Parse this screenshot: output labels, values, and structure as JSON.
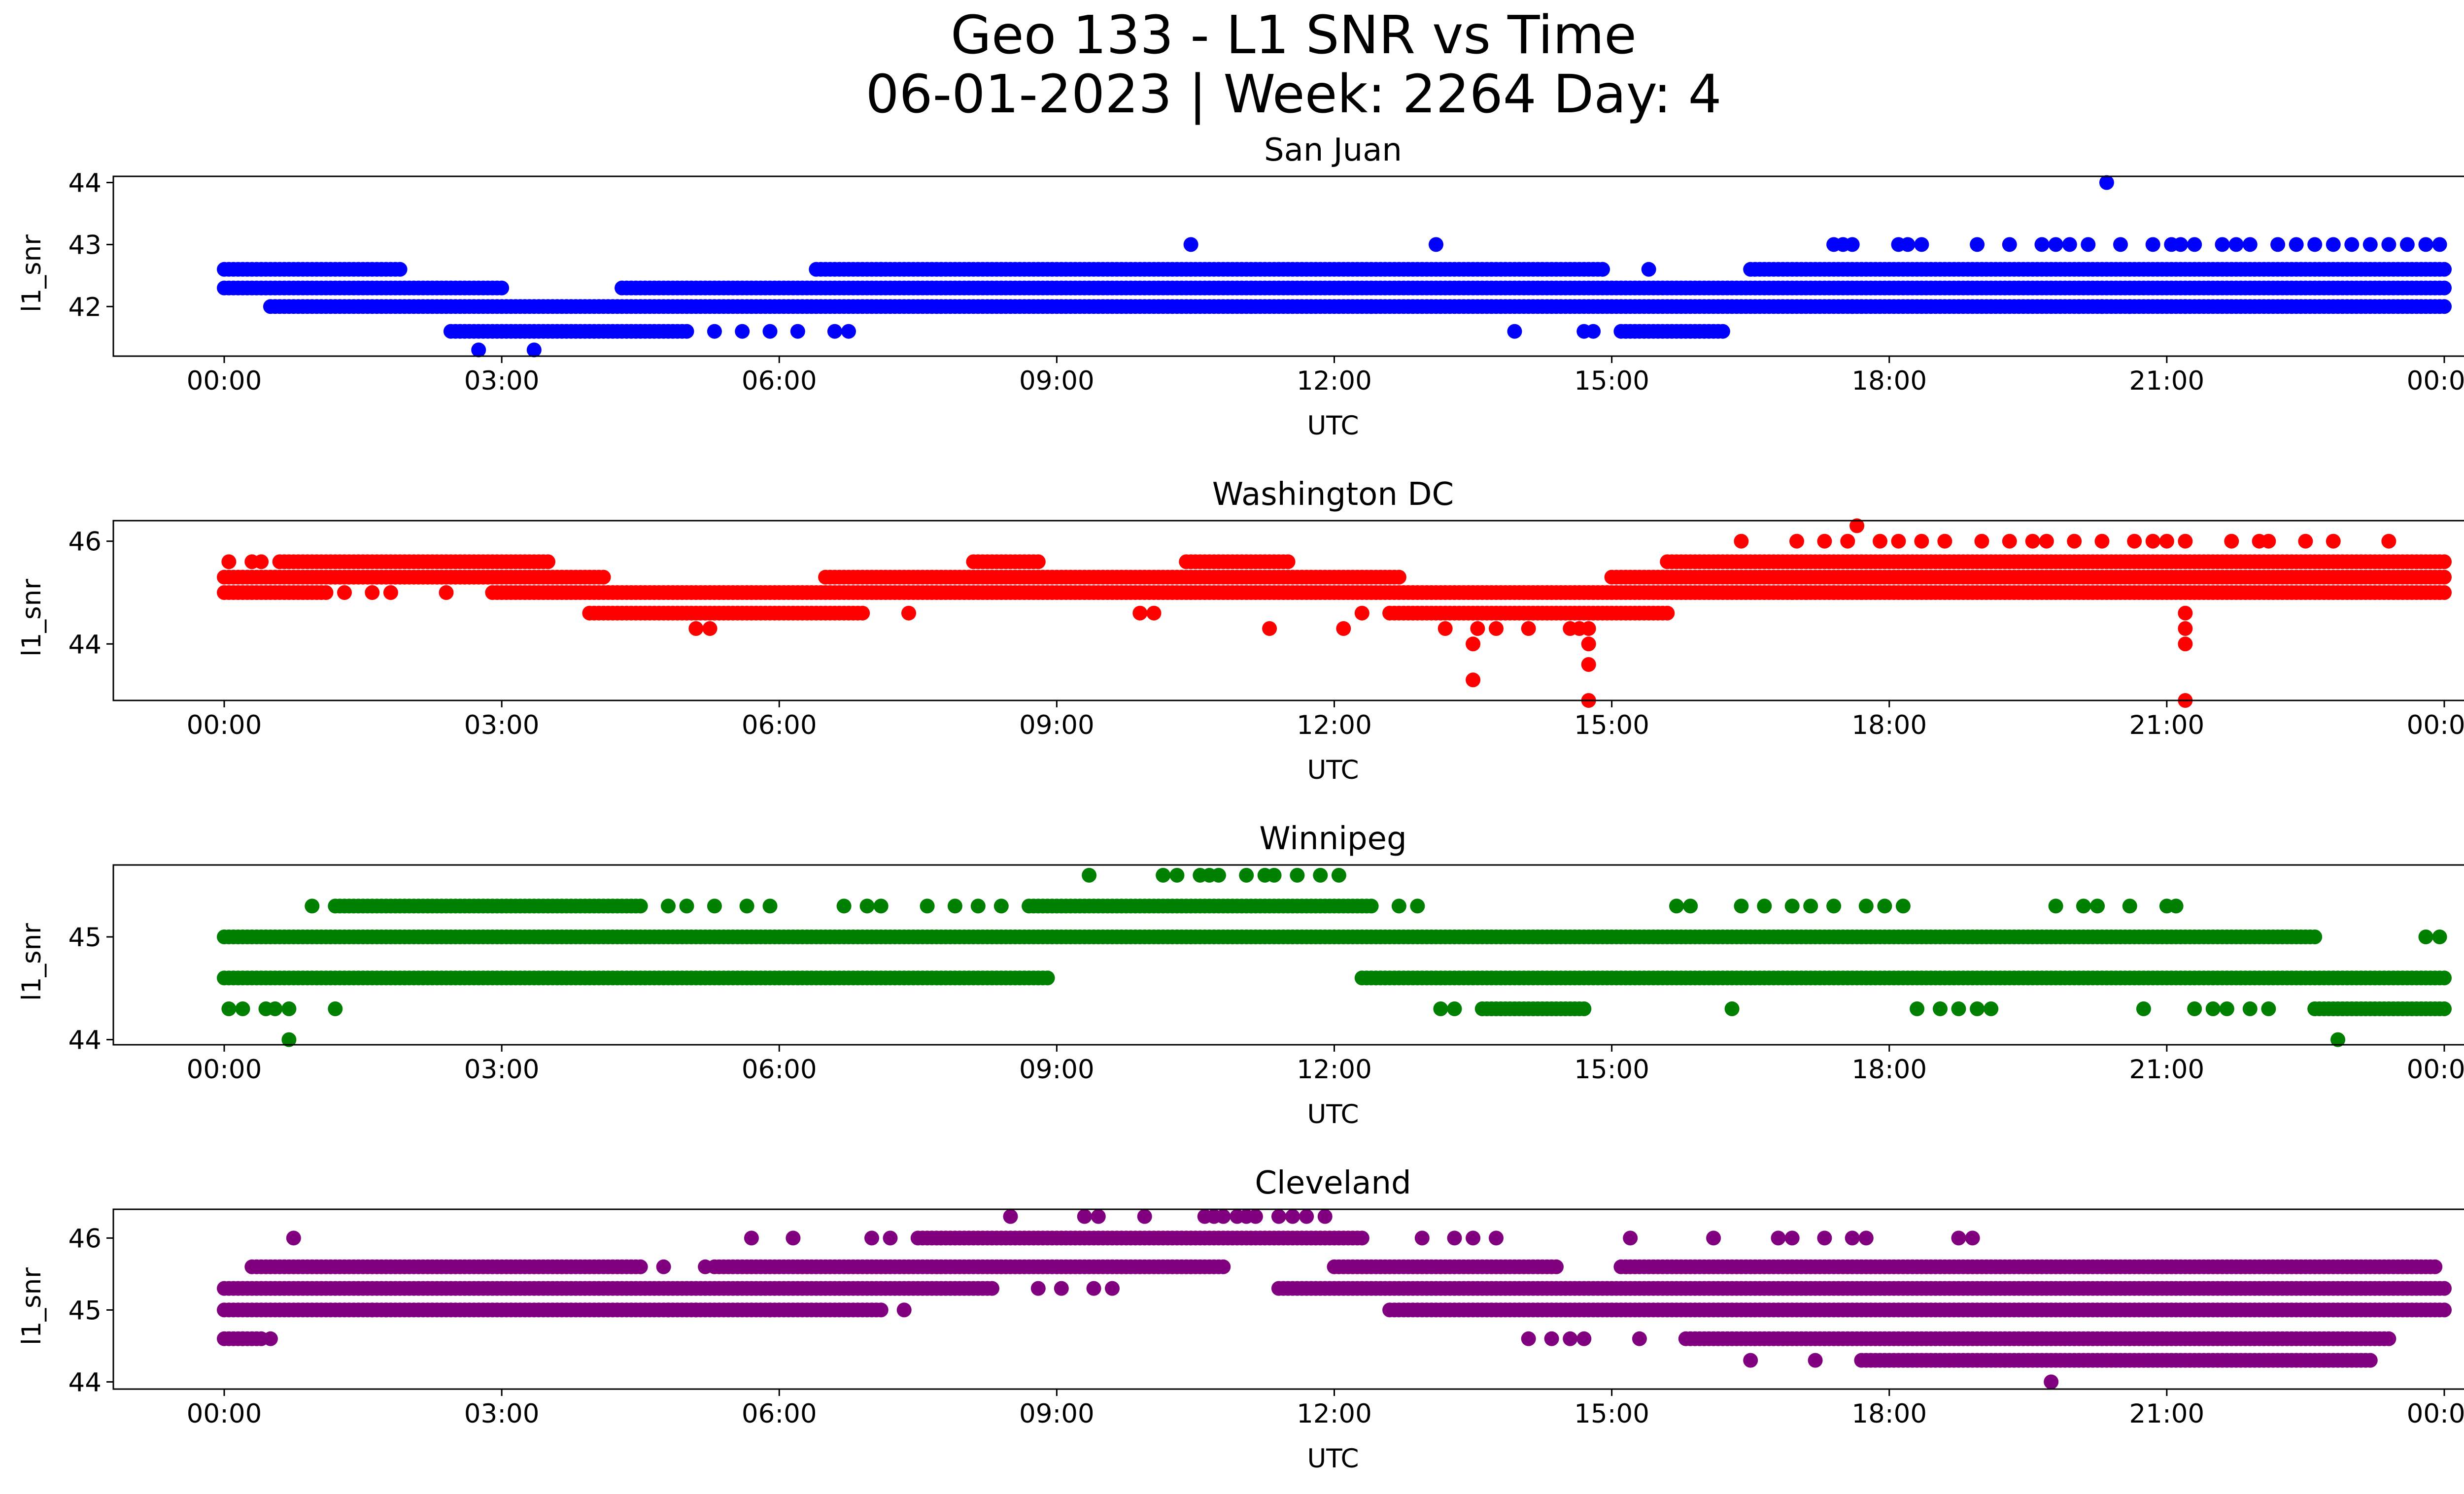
{
  "figure": {
    "title_line1": "Geo 133 - L1 SNR vs Time",
    "title_line2": "06-01-2023 | Week: 2264 Day: 4"
  },
  "chart_data": [
    {
      "type": "scatter",
      "title": "San Juan",
      "xlabel": "UTC",
      "ylabel": "l1_snr",
      "color": "#0000ff",
      "xticks": [
        "00:00",
        "03:00",
        "06:00",
        "09:00",
        "12:00",
        "15:00",
        "18:00",
        "21:00",
        "00:00"
      ],
      "xlim_hours": [
        0,
        24
      ],
      "ylim": [
        41.2,
        44.1
      ],
      "yticks": [
        42,
        43,
        44
      ],
      "bands": [
        {
          "y": 42.6,
          "ranges": [
            [
              0,
              1.9
            ],
            [
              6.4,
              7.1
            ],
            [
              7.1,
              14.9
            ],
            [
              16.5,
              24
            ]
          ]
        },
        {
          "y": 42.3,
          "ranges": [
            [
              0,
              3.0
            ],
            [
              4.3,
              24
            ]
          ]
        },
        {
          "y": 42.0,
          "ranges": [
            [
              0.5,
              12.4
            ],
            [
              12.4,
              17.6
            ],
            [
              17.6,
              24
            ]
          ]
        },
        {
          "y": 41.6,
          "ranges": [
            [
              2.45,
              5.0
            ],
            [
              15.1,
              16.2
            ]
          ]
        }
      ],
      "points": [
        [
          2.75,
          41.3
        ],
        [
          3.35,
          41.3
        ],
        [
          10.45,
          43.0
        ],
        [
          13.1,
          43.0
        ],
        [
          20.35,
          44.0
        ],
        [
          14.9,
          42.6
        ],
        [
          15.4,
          42.6
        ],
        [
          13.95,
          41.6
        ],
        [
          14.7,
          41.6
        ],
        [
          14.8,
          41.6
        ],
        [
          5.3,
          41.6
        ],
        [
          5.6,
          41.6
        ],
        [
          5.9,
          41.6
        ],
        [
          6.2,
          41.6
        ],
        [
          6.6,
          41.6
        ],
        [
          6.75,
          41.6
        ],
        [
          17.4,
          43.0
        ],
        [
          17.5,
          43.0
        ],
        [
          17.6,
          43.0
        ],
        [
          18.1,
          43.0
        ],
        [
          18.2,
          43.0
        ],
        [
          18.35,
          43.0
        ],
        [
          18.95,
          43.0
        ],
        [
          19.3,
          43.0
        ],
        [
          19.65,
          43.0
        ],
        [
          19.8,
          43.0
        ],
        [
          19.95,
          43.0
        ],
        [
          20.15,
          43.0
        ],
        [
          20.5,
          43.0
        ],
        [
          20.85,
          43.0
        ],
        [
          21.05,
          43.0
        ],
        [
          21.15,
          43.0
        ],
        [
          21.3,
          43.0
        ],
        [
          21.6,
          43.0
        ],
        [
          21.75,
          43.0
        ],
        [
          21.9,
          43.0
        ],
        [
          22.2,
          43.0
        ],
        [
          22.4,
          43.0
        ],
        [
          22.6,
          43.0
        ],
        [
          22.8,
          43.0
        ],
        [
          23.0,
          43.0
        ],
        [
          23.2,
          43.0
        ],
        [
          23.4,
          43.0
        ],
        [
          23.6,
          43.0
        ],
        [
          23.8,
          43.0
        ],
        [
          23.95,
          43.0
        ],
        [
          20.05,
          42.0
        ],
        [
          20.3,
          42.0
        ],
        [
          20.6,
          42.0
        ],
        [
          21.2,
          42.0
        ]
      ]
    },
    {
      "type": "scatter",
      "title": "Washington DC",
      "xlabel": "UTC",
      "ylabel": "l1_snr",
      "color": "#ff0000",
      "xticks": [
        "00:00",
        "03:00",
        "06:00",
        "09:00",
        "12:00",
        "15:00",
        "18:00",
        "21:00",
        "00:00"
      ],
      "xlim_hours": [
        0,
        24
      ],
      "ylim": [
        42.9,
        46.4
      ],
      "yticks": [
        44,
        46
      ],
      "bands": [
        {
          "y": 45.6,
          "ranges": [
            [
              0.6,
              3.5
            ],
            [
              8.1,
              8.8
            ],
            [
              10.4,
              11.5
            ],
            [
              15.6,
              24
            ]
          ]
        },
        {
          "y": 45.3,
          "ranges": [
            [
              0,
              4.1
            ],
            [
              6.5,
              12.7
            ],
            [
              15.0,
              24
            ]
          ]
        },
        {
          "y": 45.0,
          "ranges": [
            [
              0,
              1.1
            ],
            [
              2.9,
              24
            ]
          ]
        },
        {
          "y": 44.6,
          "ranges": [
            [
              3.95,
              6.9
            ],
            [
              12.6,
              15.6
            ]
          ]
        }
      ],
      "points": [
        [
          7.4,
          44.6
        ],
        [
          9.9,
          44.6
        ],
        [
          10.05,
          44.6
        ],
        [
          11.3,
          44.3
        ],
        [
          12.1,
          44.3
        ],
        [
          12.3,
          44.6
        ],
        [
          5.1,
          44.3
        ],
        [
          5.25,
          44.3
        ],
        [
          13.2,
          44.3
        ],
        [
          13.55,
          44.3
        ],
        [
          13.75,
          44.3
        ],
        [
          14.1,
          44.3
        ],
        [
          14.55,
          44.3
        ],
        [
          14.65,
          44.3
        ],
        [
          14.75,
          44.3
        ],
        [
          14.75,
          44.0
        ],
        [
          14.75,
          43.6
        ],
        [
          14.75,
          42.9
        ],
        [
          13.5,
          44.0
        ],
        [
          13.5,
          43.3
        ],
        [
          21.2,
          44.6
        ],
        [
          21.2,
          44.3
        ],
        [
          21.2,
          44.0
        ],
        [
          21.2,
          42.9
        ],
        [
          16.4,
          46.0
        ],
        [
          17.0,
          46.0
        ],
        [
          17.3,
          46.0
        ],
        [
          17.55,
          46.0
        ],
        [
          17.65,
          46.3
        ],
        [
          17.9,
          46.0
        ],
        [
          18.1,
          46.0
        ],
        [
          18.35,
          46.0
        ],
        [
          18.6,
          46.0
        ],
        [
          19.0,
          46.0
        ],
        [
          19.3,
          46.0
        ],
        [
          19.55,
          46.0
        ],
        [
          19.7,
          46.0
        ],
        [
          20.0,
          46.0
        ],
        [
          20.3,
          46.0
        ],
        [
          20.65,
          46.0
        ],
        [
          20.85,
          46.0
        ],
        [
          21.0,
          46.0
        ],
        [
          21.2,
          46.0
        ],
        [
          21.7,
          46.0
        ],
        [
          22.0,
          46.0
        ],
        [
          22.1,
          46.0
        ],
        [
          22.5,
          46.0
        ],
        [
          22.8,
          46.0
        ],
        [
          23.4,
          46.0
        ],
        [
          0.05,
          45.6
        ],
        [
          0.3,
          45.6
        ],
        [
          0.4,
          45.6
        ],
        [
          2.4,
          45.0
        ],
        [
          1.3,
          45.0
        ],
        [
          1.6,
          45.0
        ],
        [
          1.8,
          45.0
        ],
        [
          16.95,
          45.0
        ],
        [
          17.1,
          45.0
        ],
        [
          17.4,
          45.0
        ],
        [
          17.7,
          45.0
        ],
        [
          23.95,
          45.0
        ]
      ]
    },
    {
      "type": "scatter",
      "title": "Winnipeg",
      "xlabel": "UTC",
      "ylabel": "l1_snr",
      "color": "#008000",
      "xticks": [
        "00:00",
        "03:00",
        "06:00",
        "09:00",
        "12:00",
        "15:00",
        "18:00",
        "21:00",
        "00:00"
      ],
      "xlim_hours": [
        0,
        24
      ],
      "ylim": [
        43.95,
        45.7
      ],
      "yticks": [
        44,
        45
      ],
      "bands": [
        {
          "y": 45.3,
          "ranges": [
            [
              1.2,
              4.5
            ],
            [
              8.7,
              12.4
            ]
          ]
        },
        {
          "y": 45.0,
          "ranges": [
            [
              0,
              22.6
            ]
          ]
        },
        {
          "y": 44.6,
          "ranges": [
            [
              0,
              8.9
            ],
            [
              12.3,
              24
            ]
          ]
        },
        {
          "y": 44.3,
          "ranges": [
            [
              13.6,
              14.7
            ],
            [
              22.6,
              24
            ]
          ]
        }
      ],
      "points": [
        [
          0.05,
          44.3
        ],
        [
          0.2,
          44.3
        ],
        [
          0.45,
          44.3
        ],
        [
          0.55,
          44.3
        ],
        [
          0.7,
          44.3
        ],
        [
          1.2,
          44.3
        ],
        [
          0.7,
          44.0
        ],
        [
          22.85,
          44.0
        ],
        [
          0.95,
          45.3
        ],
        [
          4.8,
          45.3
        ],
        [
          5.0,
          45.3
        ],
        [
          5.3,
          45.3
        ],
        [
          5.65,
          45.3
        ],
        [
          5.9,
          45.3
        ],
        [
          6.7,
          45.3
        ],
        [
          6.95,
          45.3
        ],
        [
          7.1,
          45.3
        ],
        [
          7.6,
          45.3
        ],
        [
          7.9,
          45.3
        ],
        [
          8.15,
          45.3
        ],
        [
          8.4,
          45.3
        ],
        [
          12.7,
          45.3
        ],
        [
          12.9,
          45.3
        ],
        [
          15.7,
          45.3
        ],
        [
          15.85,
          45.3
        ],
        [
          16.4,
          45.3
        ],
        [
          16.65,
          45.3
        ],
        [
          16.95,
          45.3
        ],
        [
          17.15,
          45.3
        ],
        [
          17.4,
          45.3
        ],
        [
          17.75,
          45.3
        ],
        [
          17.95,
          45.3
        ],
        [
          18.15,
          45.3
        ],
        [
          19.8,
          45.3
        ],
        [
          20.1,
          45.3
        ],
        [
          20.25,
          45.3
        ],
        [
          20.6,
          45.3
        ],
        [
          21.0,
          45.3
        ],
        [
          21.1,
          45.3
        ],
        [
          9.35,
          45.6
        ],
        [
          10.15,
          45.6
        ],
        [
          10.3,
          45.6
        ],
        [
          10.55,
          45.6
        ],
        [
          10.65,
          45.6
        ],
        [
          10.75,
          45.6
        ],
        [
          11.05,
          45.6
        ],
        [
          11.25,
          45.6
        ],
        [
          11.35,
          45.6
        ],
        [
          11.6,
          45.6
        ],
        [
          11.85,
          45.6
        ],
        [
          12.05,
          45.6
        ],
        [
          13.15,
          44.3
        ],
        [
          13.3,
          44.3
        ],
        [
          16.3,
          44.3
        ],
        [
          18.3,
          44.3
        ],
        [
          18.55,
          44.3
        ],
        [
          18.75,
          44.3
        ],
        [
          18.95,
          44.3
        ],
        [
          19.1,
          44.3
        ],
        [
          20.75,
          44.3
        ],
        [
          21.3,
          44.3
        ],
        [
          21.5,
          44.3
        ],
        [
          21.65,
          44.3
        ],
        [
          21.9,
          44.3
        ],
        [
          22.1,
          44.3
        ],
        [
          23.8,
          45.0
        ],
        [
          23.95,
          45.0
        ]
      ]
    },
    {
      "type": "scatter",
      "title": "Cleveland",
      "xlabel": "UTC",
      "ylabel": "l1_snr",
      "color": "#800080",
      "xticks": [
        "00:00",
        "03:00",
        "06:00",
        "09:00",
        "12:00",
        "15:00",
        "18:00",
        "21:00",
        "00:00"
      ],
      "xlim_hours": [
        0,
        24
      ],
      "ylim": [
        43.9,
        46.4
      ],
      "yticks": [
        44,
        45,
        46
      ],
      "bands": [
        {
          "y": 46.0,
          "ranges": [
            [
              7.5,
              12.3
            ]
          ]
        },
        {
          "y": 45.6,
          "ranges": [
            [
              0.3,
              4.5
            ],
            [
              5.3,
              10.8
            ],
            [
              12.0,
              14.4
            ],
            [
              15.1,
              23.9
            ]
          ]
        },
        {
          "y": 45.3,
          "ranges": [
            [
              0,
              8.3
            ],
            [
              11.4,
              24
            ]
          ]
        },
        {
          "y": 45.0,
          "ranges": [
            [
              0,
              7.1
            ],
            [
              12.6,
              24
            ]
          ]
        },
        {
          "y": 44.6,
          "ranges": [
            [
              0,
              0.4
            ],
            [
              15.8,
              23.4
            ]
          ]
        },
        {
          "y": 44.3,
          "ranges": [
            [
              17.7,
              23.2
            ]
          ]
        }
      ],
      "points": [
        [
          0.75,
          46.0
        ],
        [
          5.7,
          46.0
        ],
        [
          6.15,
          46.0
        ],
        [
          7.0,
          46.0
        ],
        [
          7.2,
          46.0
        ],
        [
          8.5,
          46.3
        ],
        [
          9.3,
          46.3
        ],
        [
          9.45,
          46.3
        ],
        [
          9.95,
          46.3
        ],
        [
          10.6,
          46.3
        ],
        [
          10.7,
          46.3
        ],
        [
          10.8,
          46.3
        ],
        [
          10.95,
          46.3
        ],
        [
          11.05,
          46.3
        ],
        [
          11.15,
          46.3
        ],
        [
          11.4,
          46.3
        ],
        [
          11.55,
          46.3
        ],
        [
          11.7,
          46.3
        ],
        [
          11.9,
          46.3
        ],
        [
          12.95,
          46.0
        ],
        [
          13.3,
          46.0
        ],
        [
          13.5,
          46.0
        ],
        [
          13.75,
          46.0
        ],
        [
          15.2,
          46.0
        ],
        [
          16.1,
          46.0
        ],
        [
          16.8,
          46.0
        ],
        [
          16.95,
          46.0
        ],
        [
          17.3,
          46.0
        ],
        [
          17.6,
          46.0
        ],
        [
          17.75,
          46.0
        ],
        [
          18.75,
          46.0
        ],
        [
          18.9,
          46.0
        ],
        [
          0.5,
          44.6
        ],
        [
          0.2,
          44.6
        ],
        [
          14.1,
          44.6
        ],
        [
          14.35,
          44.6
        ],
        [
          14.55,
          44.6
        ],
        [
          14.7,
          44.6
        ],
        [
          15.3,
          44.6
        ],
        [
          16.5,
          44.3
        ],
        [
          17.2,
          44.3
        ],
        [
          19.75,
          44.0
        ],
        [
          8.8,
          45.3
        ],
        [
          9.05,
          45.3
        ],
        [
          9.4,
          45.3
        ],
        [
          9.6,
          45.3
        ],
        [
          4.8,
          45.0
        ],
        [
          5.1,
          45.0
        ],
        [
          5.9,
          45.0
        ],
        [
          7.35,
          45.0
        ],
        [
          1.6,
          45.0
        ],
        [
          1.75,
          45.0
        ],
        [
          4.75,
          45.6
        ],
        [
          5.2,
          45.6
        ]
      ]
    }
  ]
}
